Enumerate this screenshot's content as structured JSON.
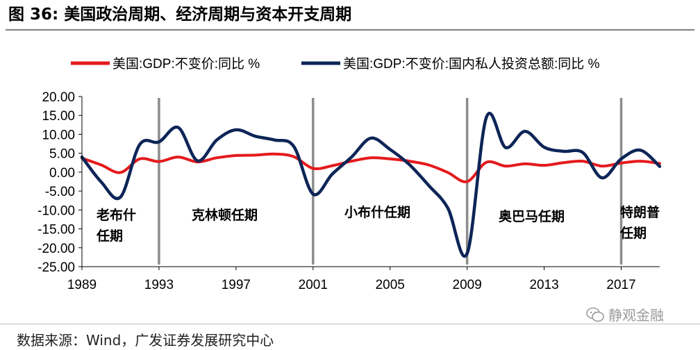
{
  "title": "图 36:  美国政治周期、经济周期与资本开支周期",
  "source": "数据来源：Wind，广发证券发展研究中心",
  "watermark": "静观金融",
  "colors": {
    "gdp": "#e41a1c",
    "investment": "#0d2557",
    "divider": "#8c8c8c",
    "axis": "#000000"
  },
  "chart_data": {
    "type": "line",
    "title": "",
    "xlabel": "",
    "ylabel": "",
    "xlim": [
      1989,
      2019
    ],
    "ylim": [
      -25,
      20
    ],
    "y_ticks": [
      20,
      15,
      10,
      5,
      0,
      -5,
      -10,
      -15,
      -20,
      -25
    ],
    "y_tick_labels": [
      "20.00",
      "15.00",
      "10.00",
      "5.00",
      "0.00",
      "-5.00",
      "-10.00",
      "-15.00",
      "-20.00",
      "-25.00"
    ],
    "x_ticks": [
      1989,
      1993,
      1997,
      2001,
      2005,
      2009,
      2013,
      2017
    ],
    "x_tick_labels": [
      "1989",
      "1993",
      "1997",
      "2001",
      "2005",
      "2009",
      "2013",
      "2017"
    ],
    "legend": {
      "position": "top"
    },
    "series": [
      {
        "name": "美国:GDP:不变价:同比 %",
        "color": "#e41a1c",
        "x": [
          1989,
          1990,
          1991,
          1992,
          1993,
          1994,
          1995,
          1996,
          1997,
          1998,
          1999,
          2000,
          2001,
          2002,
          2003,
          2004,
          2005,
          2006,
          2007,
          2008,
          2009,
          2010,
          2011,
          2012,
          2013,
          2014,
          2015,
          2016,
          2017,
          2018,
          2019
        ],
        "values": [
          3.7,
          1.9,
          -0.1,
          3.5,
          2.8,
          4.0,
          2.7,
          3.8,
          4.4,
          4.5,
          4.8,
          4.1,
          1.0,
          1.7,
          2.9,
          3.8,
          3.5,
          2.9,
          1.9,
          -0.1,
          -2.5,
          2.6,
          1.6,
          2.2,
          1.8,
          2.5,
          2.9,
          1.6,
          2.4,
          2.9,
          2.3
        ]
      },
      {
        "name": "美国:GDP:不变价:国内私人投资总额:同比 %",
        "color": "#0d2557",
        "x": [
          1989,
          1990,
          1991,
          1992,
          1993,
          1994,
          1995,
          1996,
          1997,
          1998,
          1999,
          2000,
          2001,
          2002,
          2003,
          2004,
          2005,
          2006,
          2007,
          2008,
          2009,
          2010,
          2011,
          2012,
          2013,
          2014,
          2015,
          2016,
          2017,
          2018,
          2019
        ],
        "values": [
          4.0,
          -2.6,
          -6.6,
          7.3,
          8.0,
          11.8,
          3.0,
          8.5,
          11.2,
          9.5,
          8.5,
          6.8,
          -5.8,
          -0.5,
          4.0,
          9.0,
          6.0,
          2.0,
          -3.5,
          -9.5,
          -21.5,
          14.5,
          6.5,
          10.8,
          6.6,
          5.5,
          5.2,
          -1.5,
          3.5,
          5.8,
          1.5
        ]
      }
    ],
    "dividers": [
      1993,
      2001,
      2009,
      2017
    ],
    "terms": [
      {
        "lines": [
          "老布什",
          "任期"
        ]
      },
      {
        "lines": [
          "克林顿任期"
        ]
      },
      {
        "lines": [
          "小布什任期"
        ]
      },
      {
        "lines": [
          "奥巴马任期"
        ]
      },
      {
        "lines": [
          "特朗普",
          "任期"
        ]
      }
    ]
  }
}
